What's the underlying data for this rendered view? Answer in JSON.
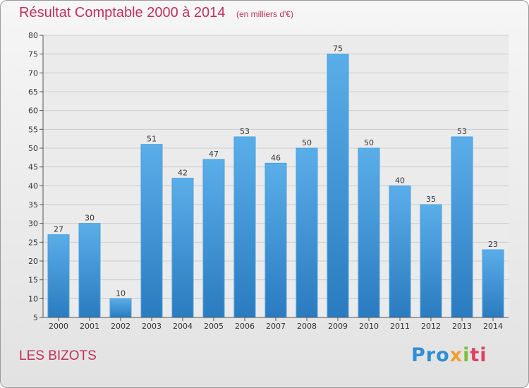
{
  "header": {
    "title": "Résultat Comptable 2000 à 2014",
    "unit": "(en milliers d'€)"
  },
  "footer": {
    "commune": "LES BIZOTS",
    "logo": [
      "Pro",
      "x",
      "i",
      "ti"
    ]
  },
  "colors": {
    "bar_top": "#5aaee8",
    "bar_bottom": "#2a7bc0",
    "title": "#c0305a",
    "grid": "#cccccc"
  },
  "chart_data": {
    "type": "bar",
    "categories": [
      "2000",
      "2001",
      "2002",
      "2003",
      "2004",
      "2005",
      "2006",
      "2007",
      "2008",
      "2009",
      "2010",
      "2011",
      "2012",
      "2013",
      "2014"
    ],
    "values": [
      27,
      30,
      10,
      51,
      42,
      47,
      53,
      46,
      50,
      75,
      50,
      40,
      35,
      53,
      23
    ],
    "ylim": [
      5,
      80
    ],
    "yticks": [
      5,
      10,
      15,
      20,
      25,
      30,
      35,
      40,
      45,
      50,
      55,
      60,
      65,
      70,
      75,
      80
    ],
    "grid": true
  }
}
